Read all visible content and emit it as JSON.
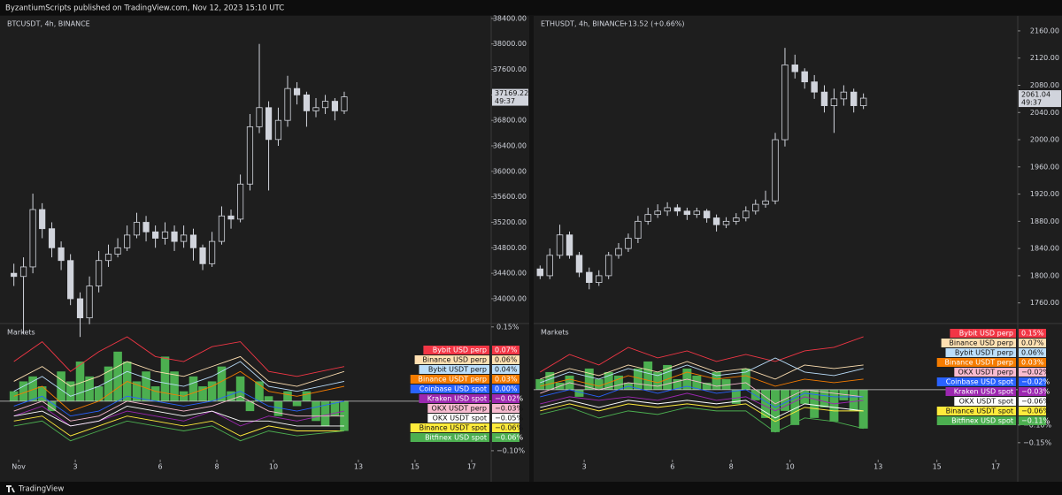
{
  "header": "ByzantiumScripts published on TradingView.com, Nov 12, 2023 15:10 UTC",
  "footer": "TradingView",
  "chart_data": [
    {
      "type": "candlestick",
      "title": "BTCUSDT, 4h, BINANCE",
      "subtitle": null,
      "current_price_label": "37169.22",
      "countdown": "49:37",
      "x": [
        0.83,
        1.17,
        1.5,
        1.83,
        2.17,
        2.5,
        2.83,
        3.17,
        3.5,
        3.83,
        4.17,
        4.5,
        4.83,
        5.17,
        5.5,
        5.83,
        6.17,
        6.5,
        6.83,
        7.17,
        7.5,
        7.83,
        8.17,
        8.5,
        8.83,
        9.17,
        9.5,
        9.83,
        10.17,
        10.5,
        10.83,
        11.17,
        11.5,
        11.83,
        12.17,
        12.5
      ],
      "open": [
        34400,
        34350,
        34500,
        35400,
        35100,
        34800,
        34600,
        34000,
        33700,
        34200,
        34600,
        34700,
        34800,
        35000,
        35200,
        35050,
        34950,
        35050,
        34900,
        35000,
        34800,
        34550,
        34900,
        35300,
        35250,
        35800,
        36700,
        37000,
        36500,
        36800,
        37300,
        37200,
        36950,
        37000,
        37100,
        36950
      ],
      "high": [
        34550,
        34650,
        35650,
        35500,
        35200,
        34900,
        34700,
        34100,
        34350,
        34750,
        34850,
        34950,
        35150,
        35350,
        35300,
        35150,
        35200,
        35150,
        35150,
        35100,
        34850,
        35050,
        35450,
        35400,
        35950,
        36900,
        38000,
        37100,
        37000,
        37500,
        37400,
        37250,
        37150,
        37200,
        37150,
        37250
      ],
      "low": [
        34200,
        33450,
        34400,
        34950,
        34650,
        34450,
        33900,
        33400,
        33600,
        34100,
        34500,
        34650,
        34750,
        34950,
        34900,
        34800,
        34850,
        34750,
        34800,
        34600,
        34450,
        34500,
        34850,
        35100,
        35200,
        35700,
        36600,
        35700,
        36400,
        36700,
        37050,
        36700,
        36850,
        36900,
        36800,
        36900
      ],
      "close": [
        34350,
        34500,
        35400,
        35100,
        34800,
        34600,
        34000,
        33700,
        34200,
        34600,
        34700,
        34800,
        35000,
        35200,
        35050,
        34950,
        35050,
        34900,
        35000,
        34800,
        34550,
        34900,
        35300,
        35250,
        35800,
        36700,
        37000,
        36500,
        36800,
        37300,
        37200,
        36950,
        37000,
        37100,
        36950,
        37169.22
      ],
      "xlim": [
        0.34,
        17.69
      ],
      "xticks": [
        {
          "value": 1,
          "label": "Nov"
        },
        3,
        6,
        8,
        10,
        13,
        15,
        17
      ],
      "ylim": [
        33625,
        38440
      ],
      "yticks": [
        {
          "value": 34000,
          "label": "34000.00"
        },
        {
          "value": 34400,
          "label": "34400.00"
        },
        {
          "value": 34800,
          "label": "34800.00"
        },
        {
          "value": 35200,
          "label": "35200.00"
        },
        {
          "value": 35600,
          "label": "35600.00"
        },
        {
          "value": 36000,
          "label": "36000.00"
        },
        {
          "value": 36400,
          "label": "36400.00"
        },
        {
          "value": 36800,
          "label": "36800.00"
        },
        {
          "value": 37200,
          "label": "37200.00"
        },
        {
          "value": 37600,
          "label": "37600.00"
        },
        {
          "value": 38000,
          "label": "38000.00"
        },
        {
          "value": 38400,
          "label": "38400.00"
        }
      ],
      "indicator": {
        "title": "Markets",
        "color": "#4caf50",
        "values": [
          0.02,
          0.04,
          0.05,
          0.03,
          -0.02,
          0.06,
          0.04,
          0.08,
          0.05,
          0.03,
          0.07,
          0.1,
          0.08,
          0.04,
          0.06,
          0.03,
          0.09,
          0.06,
          0.02,
          0.05,
          0.03,
          0.04,
          0.07,
          0.02,
          0.05,
          -0.02,
          0.04,
          0.01,
          -0.03,
          0.02,
          -0.01,
          0.02,
          -0.04,
          -0.05,
          -0.03,
          -0.06
        ],
        "series_x": [
          0.83,
          1.83,
          2.83,
          3.83,
          4.83,
          5.83,
          6.83,
          7.83,
          8.83,
          9.83,
          10.83,
          12.5
        ],
        "ylim": [
          -0.118,
          0.155
        ],
        "yticks": [
          {
            "value": 0.15,
            "label": "0.15%"
          },
          {
            "value": -0.1,
            "label": "−0.10%"
          }
        ],
        "series": [
          {
            "name": "Bybit USD perp",
            "color": "#f23645",
            "values": [
              0.08,
              0.12,
              0.06,
              0.1,
              0.13,
              0.09,
              0.08,
              0.11,
              0.12,
              0.06,
              0.05,
              0.07
            ],
            "value_label": "0.07%"
          },
          {
            "name": "Binance USD perp",
            "color": "#ffe0b2",
            "values": [
              0.04,
              0.07,
              0.03,
              0.05,
              0.08,
              0.06,
              0.05,
              0.07,
              0.09,
              0.04,
              0.03,
              0.06
            ],
            "value_label": "0.06%"
          },
          {
            "name": "Bybit USDT perp",
            "color": "#bbdefb",
            "values": [
              0.02,
              0.05,
              0.01,
              0.03,
              0.06,
              0.04,
              0.03,
              0.05,
              0.08,
              0.03,
              0.02,
              0.04
            ],
            "value_label": "0.04%"
          },
          {
            "name": "Binance USDT perp",
            "color": "#f57c00",
            "values": [
              0.01,
              0.03,
              -0.02,
              0.0,
              0.04,
              0.02,
              0.01,
              0.03,
              0.06,
              0.02,
              0.01,
              0.03
            ],
            "value_label": "0.03%"
          },
          {
            "name": "Coinbase USD spot",
            "color": "#2962ff",
            "values": [
              -0.01,
              0.01,
              -0.03,
              -0.02,
              0.01,
              0.0,
              -0.01,
              0.0,
              0.02,
              -0.01,
              -0.02,
              0.0
            ],
            "value_label": "0.00%"
          },
          {
            "name": "Kraken USD spot",
            "color": "#9c27b0",
            "values": [
              -0.03,
              -0.01,
              -0.05,
              -0.04,
              -0.02,
              -0.03,
              -0.04,
              -0.02,
              -0.05,
              -0.03,
              -0.04,
              -0.02
            ],
            "value_label": "−0.02%"
          },
          {
            "name": "OKX USDT perp",
            "color": "#f8bbd0",
            "values": [
              -0.02,
              0.0,
              -0.04,
              -0.03,
              0.0,
              -0.01,
              -0.02,
              -0.01,
              0.01,
              -0.02,
              -0.03,
              -0.03
            ],
            "value_label": "−0.03%"
          },
          {
            "name": "OKX USDT spot",
            "color": "#ffffff",
            "values": [
              -0.03,
              -0.02,
              -0.05,
              -0.04,
              -0.01,
              -0.02,
              -0.03,
              -0.02,
              -0.04,
              -0.04,
              -0.05,
              -0.05
            ],
            "value_label": "−0.05%"
          },
          {
            "name": "Binance USDT spot",
            "color": "#ffeb3b",
            "values": [
              -0.04,
              -0.03,
              -0.07,
              -0.05,
              -0.03,
              -0.04,
              -0.05,
              -0.04,
              -0.07,
              -0.05,
              -0.06,
              -0.06
            ],
            "value_label": "−0.06%"
          },
          {
            "name": "Bitfinex USD spot",
            "color": "#4caf50",
            "values": [
              -0.05,
              -0.04,
              -0.08,
              -0.06,
              -0.04,
              -0.05,
              -0.06,
              -0.05,
              -0.08,
              -0.06,
              -0.07,
              -0.06
            ],
            "value_label": "−0.06%"
          }
        ]
      }
    },
    {
      "type": "candlestick",
      "title": "ETHUSDT, 4h, BINANCE",
      "subtitle": "+13.52 (+0.66%)",
      "current_price_label": "2061.04",
      "countdown": "49:37",
      "x": [
        1.5,
        1.83,
        2.17,
        2.5,
        2.83,
        3.17,
        3.5,
        3.83,
        4.17,
        4.5,
        4.83,
        5.17,
        5.5,
        5.83,
        6.17,
        6.5,
        6.83,
        7.17,
        7.5,
        7.83,
        8.17,
        8.5,
        8.83,
        9.17,
        9.5,
        9.83,
        10.17,
        10.5,
        10.83,
        11.17,
        11.5,
        11.83,
        12.17,
        12.5
      ],
      "open": [
        1810,
        1800,
        1830,
        1860,
        1830,
        1805,
        1790,
        1800,
        1830,
        1840,
        1855,
        1880,
        1890,
        1895,
        1900,
        1895,
        1890,
        1895,
        1885,
        1875,
        1880,
        1885,
        1895,
        1905,
        1910,
        2000,
        2110,
        2100,
        2085,
        2070,
        2050,
        2060,
        2070,
        2050
      ],
      "high": [
        1815,
        1840,
        1875,
        1865,
        1835,
        1812,
        1808,
        1835,
        1848,
        1862,
        1888,
        1900,
        1905,
        1908,
        1905,
        1900,
        1900,
        1898,
        1890,
        1886,
        1892,
        1902,
        1912,
        1925,
        2010,
        2135,
        2125,
        2105,
        2095,
        2080,
        2075,
        2080,
        2075,
        2068
      ],
      "low": [
        1795,
        1795,
        1825,
        1825,
        1798,
        1780,
        1785,
        1795,
        1825,
        1835,
        1848,
        1875,
        1885,
        1888,
        1888,
        1882,
        1885,
        1878,
        1865,
        1870,
        1875,
        1880,
        1890,
        1900,
        1905,
        1990,
        2090,
        2075,
        2060,
        2040,
        2010,
        2050,
        2040,
        2045
      ],
      "close": [
        1800,
        1830,
        1860,
        1830,
        1805,
        1790,
        1800,
        1830,
        1840,
        1855,
        1880,
        1890,
        1895,
        1900,
        1895,
        1890,
        1895,
        1885,
        1875,
        1880,
        1885,
        1895,
        1905,
        1910,
        2000,
        2110,
        2100,
        2085,
        2070,
        2050,
        2060,
        2070,
        2050,
        2061.04
      ],
      "xlim": [
        1.28,
        17.75
      ],
      "xticks": [
        3,
        6,
        8,
        10,
        13,
        15,
        17
      ],
      "ylim": [
        1731,
        2182
      ],
      "yticks": [
        {
          "value": 1760,
          "label": "1760.00"
        },
        {
          "value": 1800,
          "label": "1800.00"
        },
        {
          "value": 1840,
          "label": "1840.00"
        },
        {
          "value": 1880,
          "label": "1880.00"
        },
        {
          "value": 1920,
          "label": "1920.00"
        },
        {
          "value": 1960,
          "label": "1960.00"
        },
        {
          "value": 2000,
          "label": "2000.00"
        },
        {
          "value": 2040,
          "label": "2040.00"
        },
        {
          "value": 2080,
          "label": "2080.00"
        },
        {
          "value": 2120,
          "label": "2120.00"
        },
        {
          "value": 2160,
          "label": "2160.00"
        }
      ],
      "indicator": {
        "title": "Markets",
        "color": "#4caf50",
        "values": [
          0.03,
          0.05,
          0.02,
          0.04,
          -0.02,
          0.06,
          0.03,
          0.05,
          0.04,
          0.02,
          0.06,
          0.08,
          0.05,
          0.07,
          0.03,
          0.06,
          0.04,
          0.02,
          0.05,
          0.03,
          -0.04,
          0.06,
          -0.03,
          -0.08,
          -0.12,
          -0.06,
          -0.1,
          -0.04,
          -0.08,
          -0.05,
          -0.09,
          -0.03,
          -0.06,
          -0.11
        ],
        "series_x": [
          1.5,
          2.5,
          3.5,
          4.5,
          5.5,
          6.5,
          7.5,
          8.5,
          9.5,
          10.5,
          11.5,
          12.5
        ],
        "ylim": [
          -0.198,
          0.185
        ],
        "yticks": [
          {
            "value": -0.1,
            "label": "−0.10%"
          },
          {
            "value": -0.15,
            "label": "−0.15%"
          }
        ],
        "series": [
          {
            "name": "Bybit USD perp",
            "color": "#f23645",
            "values": [
              0.05,
              0.1,
              0.07,
              0.12,
              0.09,
              0.11,
              0.08,
              0.1,
              0.08,
              0.11,
              0.12,
              0.15
            ],
            "value_label": "0.15%"
          },
          {
            "name": "Binance USD perp",
            "color": "#ffe0b2",
            "values": [
              0.03,
              0.06,
              0.04,
              0.07,
              0.05,
              0.08,
              0.05,
              0.06,
              0.03,
              0.07,
              0.06,
              0.07
            ],
            "value_label": "0.07%"
          },
          {
            "name": "Bybit USDT perp",
            "color": "#bbdefb",
            "values": [
              0.02,
              0.05,
              0.03,
              0.06,
              0.04,
              0.07,
              0.04,
              0.05,
              0.09,
              0.05,
              0.04,
              0.06
            ],
            "value_label": "0.06%"
          },
          {
            "name": "Binance USDT perp",
            "color": "#f57c00",
            "values": [
              0.01,
              0.03,
              0.01,
              0.04,
              0.02,
              0.05,
              0.03,
              0.04,
              0.01,
              0.03,
              0.02,
              0.03
            ],
            "value_label": "0.03%"
          },
          {
            "name": "OKX USDT perp",
            "color": "#f8bbd0",
            "values": [
              -0.01,
              0.02,
              0.0,
              0.02,
              0.01,
              0.03,
              0.01,
              0.02,
              -0.04,
              0.0,
              -0.01,
              -0.02
            ],
            "value_label": "−0.02%"
          },
          {
            "name": "Coinbase USD spot",
            "color": "#2962ff",
            "values": [
              -0.02,
              0.0,
              -0.02,
              0.01,
              -0.01,
              0.01,
              -0.01,
              0.0,
              -0.05,
              -0.01,
              -0.02,
              -0.02
            ],
            "value_label": "−0.02%"
          },
          {
            "name": "Kraken USD spot",
            "color": "#9c27b0",
            "values": [
              -0.04,
              -0.02,
              -0.03,
              -0.02,
              -0.03,
              -0.01,
              -0.03,
              -0.02,
              -0.06,
              -0.02,
              -0.04,
              -0.03
            ],
            "value_label": "−0.03%"
          },
          {
            "name": "OKX USDT spot",
            "color": "#ffffff",
            "values": [
              -0.05,
              -0.03,
              -0.05,
              -0.03,
              -0.04,
              -0.03,
              -0.04,
              -0.03,
              -0.08,
              -0.04,
              -0.05,
              -0.06
            ],
            "value_label": "−0.06%"
          },
          {
            "name": "Binance USDT spot",
            "color": "#ffeb3b",
            "values": [
              -0.06,
              -0.04,
              -0.06,
              -0.04,
              -0.05,
              -0.04,
              -0.05,
              -0.04,
              -0.09,
              -0.05,
              -0.06,
              -0.06
            ],
            "value_label": "−0.06%"
          },
          {
            "name": "Bitfinex USD spot",
            "color": "#4caf50",
            "values": [
              -0.07,
              -0.05,
              -0.08,
              -0.06,
              -0.07,
              -0.05,
              -0.06,
              -0.06,
              -0.12,
              -0.08,
              -0.09,
              -0.11
            ],
            "value_label": "−0.11%"
          }
        ]
      }
    }
  ]
}
